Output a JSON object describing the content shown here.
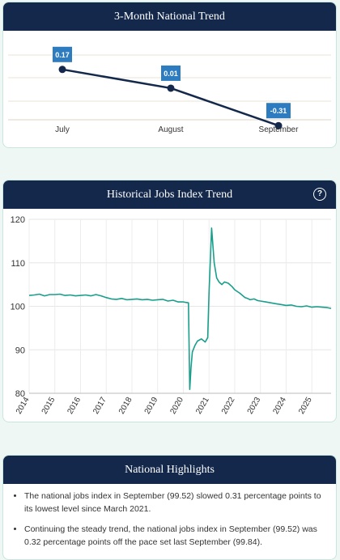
{
  "trend_panel": {
    "title": "3-Month National Trend"
  },
  "history_panel": {
    "title": "Historical Jobs Index Trend",
    "help_icon": "question-circle-icon",
    "help_glyph": "?"
  },
  "highlights_panel": {
    "title": "National Highlights",
    "items": [
      "The national jobs index in September (99.52) slowed 0.31 percentage points to its lowest level since March 2021.",
      "Continuing the steady trend, the national jobs index in September (99.52) was 0.32 percentage points off the pace set last September (99.84)."
    ]
  },
  "colors": {
    "header_bg": "#13284b",
    "label_bg": "#2e7cc0",
    "history_line": "#1a9e8c",
    "trend_line": "#13284b",
    "page_bg": "#eef7f4"
  },
  "chart_data": [
    {
      "type": "line",
      "title": "3-Month National Trend",
      "categories": [
        "July",
        "August",
        "September"
      ],
      "values": [
        0.17,
        0.01,
        -0.31
      ],
      "value_labels": [
        "0.17",
        "0.01",
        "-0.31"
      ],
      "grid": true
    },
    {
      "type": "line",
      "title": "Historical Jobs Index Trend",
      "xlim": [
        2014,
        2025.75
      ],
      "ylim": [
        80,
        120
      ],
      "yticks": [
        "80",
        "90",
        "100",
        "110",
        "120"
      ],
      "xticks": [
        "2014",
        "2015",
        "2016",
        "2017",
        "2018",
        "2019",
        "2020",
        "2021",
        "2022",
        "2023",
        "2024",
        "2025"
      ],
      "grid": true,
      "series": [
        {
          "x": [
            2014.0,
            2014.2,
            2014.4,
            2014.6,
            2014.8,
            2015.0,
            2015.2,
            2015.4,
            2015.6,
            2015.8,
            2016.0,
            2016.2,
            2016.4,
            2016.6,
            2016.8,
            2017.0,
            2017.2,
            2017.4,
            2017.6,
            2017.8,
            2018.0,
            2018.2,
            2018.4,
            2018.6,
            2018.8,
            2019.0,
            2019.2,
            2019.4,
            2019.6,
            2019.8,
            2020.0,
            2020.1,
            2020.2,
            2020.25,
            2020.3,
            2020.35,
            2020.45,
            2020.55,
            2020.7,
            2020.85,
            2020.95,
            2021.0,
            2021.1,
            2021.2,
            2021.3,
            2021.4,
            2021.5,
            2021.6,
            2021.75,
            2021.9,
            2022.0,
            2022.2,
            2022.4,
            2022.5,
            2022.6,
            2022.75,
            2022.9,
            2023.0,
            2023.2,
            2023.4,
            2023.6,
            2023.8,
            2024.0,
            2024.2,
            2024.4,
            2024.6,
            2024.8,
            2025.0,
            2025.2,
            2025.4,
            2025.6,
            2025.75
          ],
          "y": [
            102.5,
            102.6,
            102.8,
            102.4,
            102.7,
            102.7,
            102.8,
            102.5,
            102.6,
            102.4,
            102.5,
            102.6,
            102.4,
            102.7,
            102.4,
            102.0,
            101.7,
            101.6,
            101.8,
            101.5,
            101.6,
            101.7,
            101.5,
            101.6,
            101.4,
            101.5,
            101.6,
            101.2,
            101.4,
            101.0,
            101.0,
            100.9,
            100.8,
            80.9,
            86.0,
            89.5,
            91.0,
            92.0,
            92.5,
            91.8,
            92.8,
            103.0,
            118.0,
            110.0,
            106.5,
            105.5,
            105.0,
            105.6,
            105.3,
            104.5,
            103.8,
            103.0,
            102.0,
            101.8,
            101.5,
            101.7,
            101.3,
            101.2,
            101.0,
            100.8,
            100.6,
            100.4,
            100.2,
            100.3,
            100.0,
            99.9,
            100.1,
            99.8,
            99.9,
            99.8,
            99.7,
            99.52
          ]
        }
      ]
    }
  ]
}
